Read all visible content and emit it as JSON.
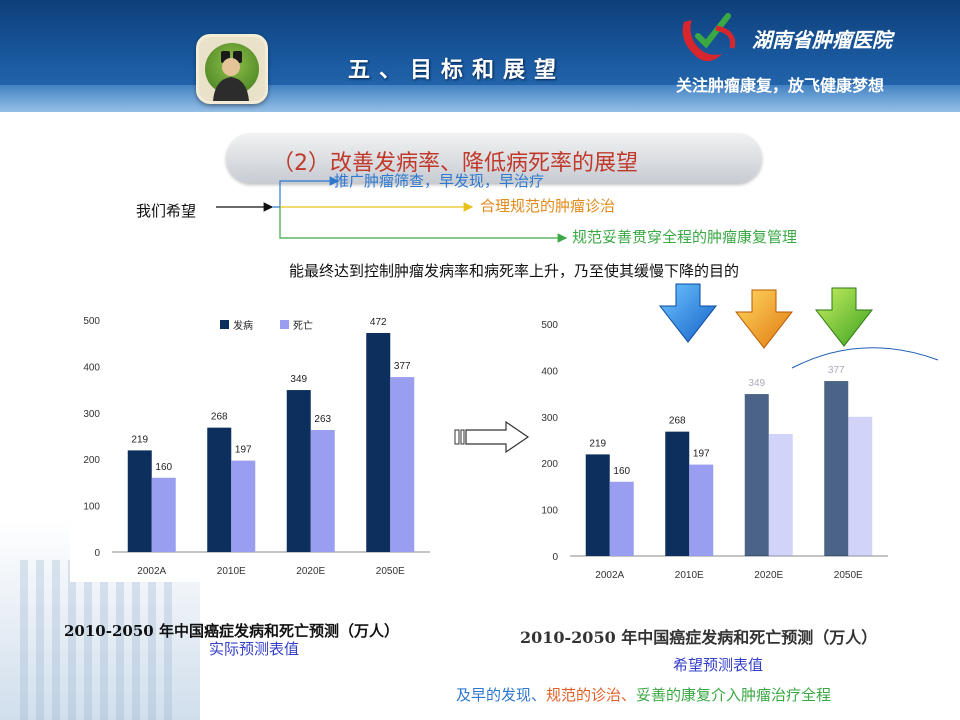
{
  "header": {
    "section_title": "五、目标和展望",
    "hospital_name": "湖南省肿瘤医院",
    "slogan": "关注肿瘤康复，放飞健康梦想",
    "colors": {
      "header_blue": "#1a5aa0",
      "logo_red": "#d8262e"
    }
  },
  "subtitle": "（2）改善发病率、降低病死率的展望",
  "wish": {
    "label": "我们希望",
    "items": [
      {
        "text": "推广肿瘤筛查，早发现，早治疗",
        "color": "#2f78cf"
      },
      {
        "text": "合理规范的肿瘤诊治",
        "color": "#e08a1a"
      },
      {
        "text": "规范妥善贯穿全程的肿瘤康复管理",
        "color": "#3aa843"
      }
    ]
  },
  "conclusion": "能最终达到控制肿瘤发病率和病死率上升，乃至使其缓慢下降的目的",
  "icons": [
    "binoculars-avatar-icon",
    "hospital-logo-icon",
    "down-arrow-blue-icon",
    "down-arrow-orange-icon",
    "down-arrow-green-icon",
    "right-arrow-icon"
  ],
  "chart_data": [
    {
      "type": "bar",
      "categories": [
        "2002A",
        "2010E",
        "2020E",
        "2050E"
      ],
      "series": [
        {
          "name": "发病",
          "values": [
            219,
            268,
            349,
            472
          ],
          "color": "#0d2f5e"
        },
        {
          "name": "死亡",
          "values": [
            160,
            197,
            263,
            377
          ],
          "color": "#9a9ef0"
        }
      ],
      "ylim": [
        0,
        500
      ],
      "yticks": [
        0,
        100,
        200,
        300,
        400,
        500
      ],
      "legend": "top",
      "grid": false,
      "title": "2010-2050 年中国癌症发病和死亡预测（万人）",
      "subtitle": "实际预测表值"
    },
    {
      "type": "bar",
      "categories": [
        "2002A",
        "2010E",
        "2020E",
        "2050E"
      ],
      "series": [
        {
          "values": [
            219,
            268,
            349,
            377
          ],
          "color": "#0d2f5e"
        },
        {
          "values": [
            160,
            197,
            263,
            300
          ],
          "color": "#9a9ef0"
        }
      ],
      "labels_shown": [
        [
          "219",
          "268",
          "349",
          "377"
        ],
        [
          "160",
          "197"
        ]
      ],
      "ylim": [
        0,
        500
      ],
      "yticks": [
        0,
        100,
        200,
        300,
        400,
        500
      ],
      "grid": false,
      "title": "2010-2050 年中国癌症发病和死亡预测（万人）",
      "subtitle": "希望预测表值"
    }
  ],
  "footer": {
    "parts": [
      {
        "text": "及早的发现、",
        "color": "#2f78cf"
      },
      {
        "text": "规范的诊治、",
        "color": "#e0602a"
      },
      {
        "text": "妥善的康复介入肿瘤治疗全程",
        "color": "#3aa843"
      }
    ]
  }
}
